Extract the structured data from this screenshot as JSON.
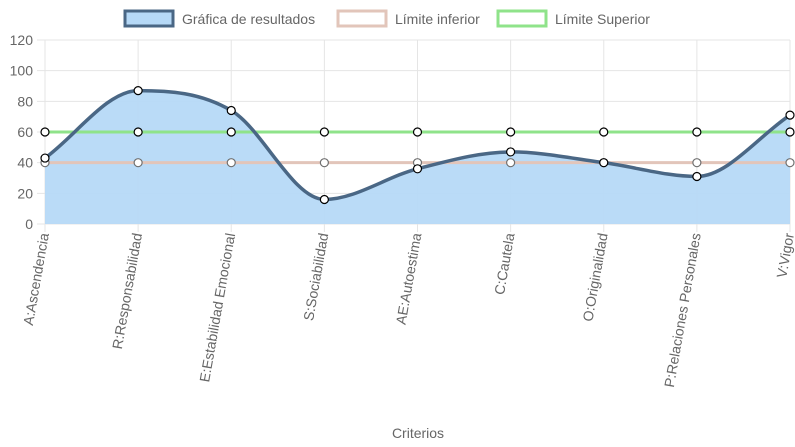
{
  "chart_data": {
    "type": "line",
    "xlabel": "Criterios",
    "ylim": [
      0,
      120
    ],
    "ytick_step": 20,
    "grid": true,
    "legend_position": "top",
    "categories": [
      "A:Ascendencia",
      "R:Responsabilidad",
      "E:Estabilidad Emocional",
      "S:Sociabilidad",
      "AE:Autoestima",
      "C:Cautela",
      "O:Originalidad",
      "P:Relaciones Personales",
      "V:Vigor"
    ],
    "series": [
      {
        "name": "Gráfica de resultados",
        "values": [
          43,
          87,
          74,
          16,
          36,
          47,
          40,
          31,
          71
        ],
        "line_color": "#4a6785",
        "fill_color": "#b6d9f7",
        "filled": true
      },
      {
        "name": "Límite inferior",
        "values": [
          40,
          40,
          40,
          40,
          40,
          40,
          40,
          40,
          40
        ],
        "line_color": "#e2c5ba",
        "filled": false
      },
      {
        "name": "Límite Superior",
        "values": [
          60,
          60,
          60,
          60,
          60,
          60,
          60,
          60,
          60
        ],
        "line_color": "#8fe38a",
        "filled": false
      }
    ]
  }
}
